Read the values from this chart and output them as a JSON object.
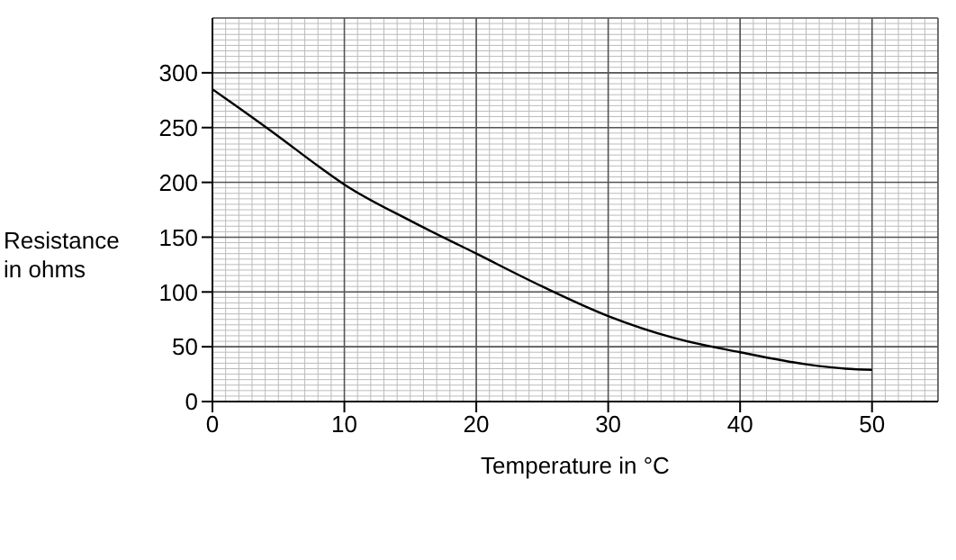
{
  "chart_data": {
    "type": "line",
    "xlabel": "Temperature in °C",
    "ylabel": "Resistance in ohms",
    "x": [
      0,
      2,
      5,
      8,
      10,
      15,
      20,
      25,
      30,
      35,
      40,
      45,
      48,
      50
    ],
    "series": [
      {
        "color": "#000000",
        "values": [
          285,
          268,
          242,
          215,
          198,
          165,
          135,
          105,
          78,
          58,
          45,
          34,
          30,
          29
        ]
      }
    ],
    "xlim": [
      0,
      55
    ],
    "xticks": [
      0,
      10,
      20,
      30,
      40,
      50
    ],
    "ylim": [
      0,
      350
    ],
    "yticks": [
      0,
      50,
      100,
      150,
      200,
      250,
      300
    ],
    "grid": true,
    "marker": "none",
    "line_style": "solid"
  }
}
